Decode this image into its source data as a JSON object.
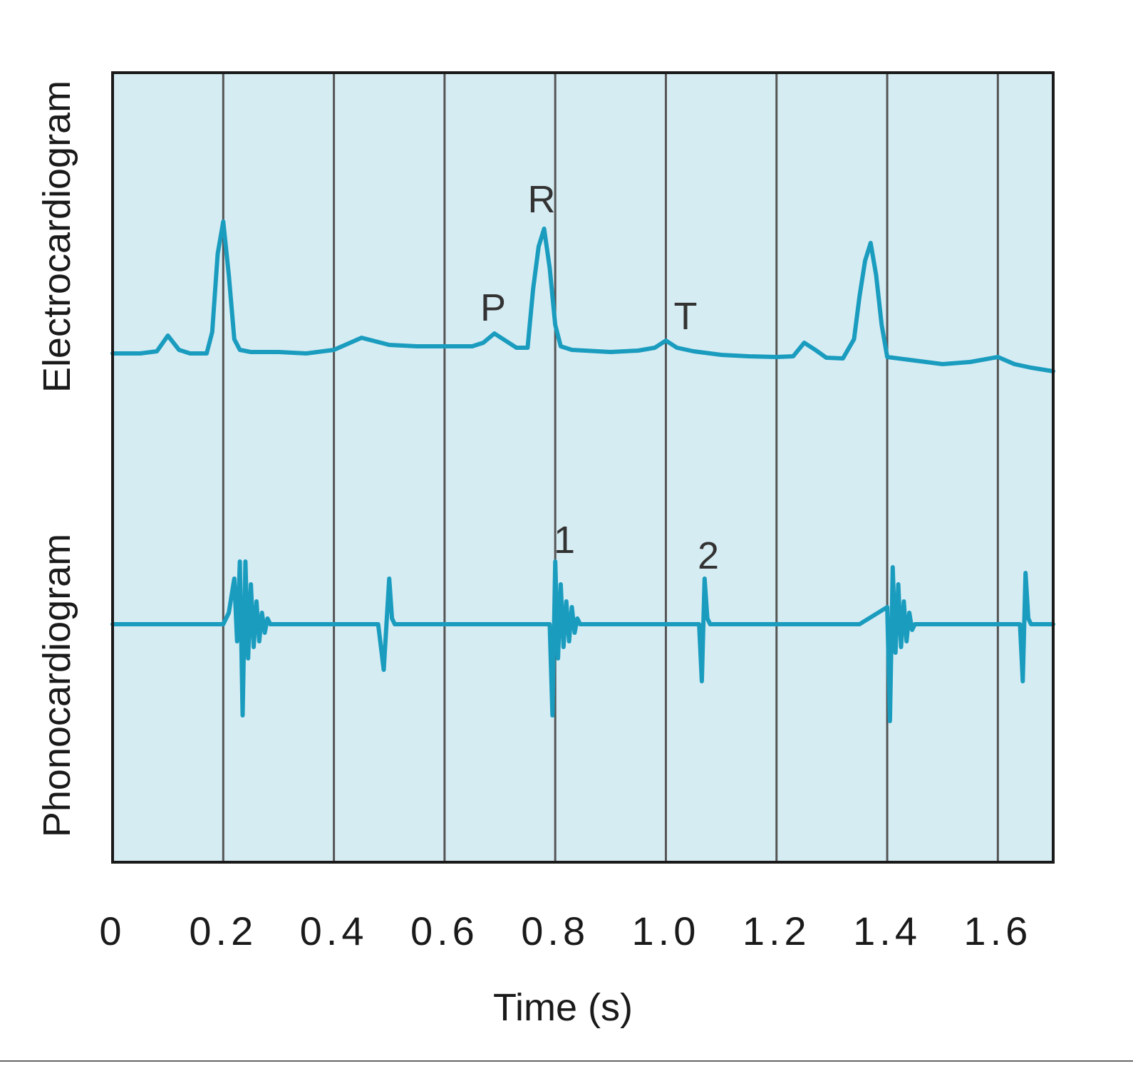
{
  "chart_data": {
    "type": "line",
    "title": "",
    "xlabel": "Time (s)",
    "ylabel_top": "Electrocardiogram",
    "ylabel_bottom": "Phonocardiogram",
    "xlim": [
      0,
      1.7
    ],
    "x_ticks": [
      0,
      0.2,
      0.4,
      0.6,
      0.8,
      1.0,
      1.2,
      1.4,
      1.6
    ],
    "x_tick_labels": [
      "0",
      "0.2",
      "0.4",
      "0.6",
      "0.8",
      "1.0",
      "1.2",
      "1.4",
      "1.6"
    ],
    "vertical_gridlines": [
      0.2,
      0.4,
      0.6,
      0.8,
      1.0,
      1.2,
      1.4,
      1.6
    ],
    "grid": true,
    "colors": {
      "trace": "#1a9cbf",
      "background": "#d6ecf3",
      "grid": "#555555",
      "frame": "#1a1a1a"
    },
    "series": [
      {
        "x": [
          0,
          0.05,
          0.08,
          0.1,
          0.12,
          0.14,
          0.17,
          0.18,
          0.19,
          0.2,
          0.21,
          0.22,
          0.23,
          0.25,
          0.3,
          0.35,
          0.4,
          0.45,
          0.5,
          0.55,
          0.6,
          0.65,
          0.67,
          0.69,
          0.71,
          0.73,
          0.75,
          0.76,
          0.77,
          0.78,
          0.79,
          0.8,
          0.81,
          0.83,
          0.9,
          0.95,
          0.98,
          1.0,
          1.02,
          1.05,
          1.1,
          1.15,
          1.2,
          1.23,
          1.25,
          1.27,
          1.29,
          1.32,
          1.34,
          1.35,
          1.36,
          1.37,
          1.38,
          1.39,
          1.4,
          1.45,
          1.5,
          1.55,
          1.6,
          1.63,
          1.66,
          1.7
        ],
        "y": [
          0,
          0,
          0.03,
          0.25,
          0.05,
          0,
          0,
          0.3,
          1.4,
          1.85,
          1.1,
          0.2,
          0.05,
          0.02,
          0.02,
          0,
          0.05,
          0.22,
          0.12,
          0.1,
          0.1,
          0.1,
          0.15,
          0.28,
          0.18,
          0.08,
          0.08,
          0.9,
          1.5,
          1.75,
          1.2,
          0.4,
          0.1,
          0.05,
          0.02,
          0.04,
          0.08,
          0.18,
          0.08,
          0.03,
          -0.02,
          -0.04,
          -0.05,
          -0.04,
          0.15,
          0.05,
          -0.06,
          -0.07,
          0.2,
          0.8,
          1.3,
          1.55,
          1.1,
          0.4,
          -0.05,
          -0.1,
          -0.15,
          -0.12,
          -0.05,
          -0.15,
          -0.2,
          -0.25
        ]
      },
      {
        "x": [
          0,
          0.2,
          0.21,
          0.22,
          0.225,
          0.23,
          0.235,
          0.24,
          0.245,
          0.25,
          0.255,
          0.26,
          0.265,
          0.27,
          0.275,
          0.28,
          0.285,
          0.29,
          0.3,
          0.35,
          0.4,
          0.48,
          0.49,
          0.5,
          0.505,
          0.51,
          0.52,
          0.6,
          0.7,
          0.79,
          0.795,
          0.8,
          0.805,
          0.81,
          0.815,
          0.82,
          0.825,
          0.83,
          0.835,
          0.84,
          0.845,
          0.85,
          0.86,
          0.9,
          1.0,
          1.06,
          1.065,
          1.07,
          1.075,
          1.08,
          1.1,
          1.2,
          1.35,
          1.4,
          1.405,
          1.41,
          1.415,
          1.42,
          1.425,
          1.43,
          1.435,
          1.44,
          1.445,
          1.45,
          1.46,
          1.5,
          1.6,
          1.64,
          1.645,
          1.65,
          1.655,
          1.66,
          1.67,
          1.7
        ],
        "y": [
          0,
          0,
          0.2,
          0.8,
          -0.3,
          1.1,
          -1.6,
          1.1,
          -0.6,
          0.7,
          -0.4,
          0.4,
          -0.3,
          0.2,
          -0.15,
          0.1,
          0,
          0,
          0,
          0,
          0,
          0,
          -0.8,
          0.8,
          0.1,
          0,
          0,
          0,
          0,
          0,
          -1.6,
          1.1,
          -0.6,
          0.7,
          -0.4,
          0.4,
          -0.3,
          0.3,
          -0.15,
          0.1,
          0,
          0,
          0,
          0,
          0,
          0,
          -1.0,
          0.8,
          0.1,
          0,
          0,
          0,
          0,
          0.3,
          -1.7,
          1.0,
          -0.5,
          0.7,
          -0.4,
          0.4,
          -0.3,
          0.2,
          -0.1,
          0,
          0,
          0,
          0,
          0,
          -1.0,
          0.9,
          0.1,
          0,
          0,
          0
        ]
      }
    ],
    "annotations": [
      "R",
      "P",
      "T",
      "1",
      "2"
    ]
  }
}
